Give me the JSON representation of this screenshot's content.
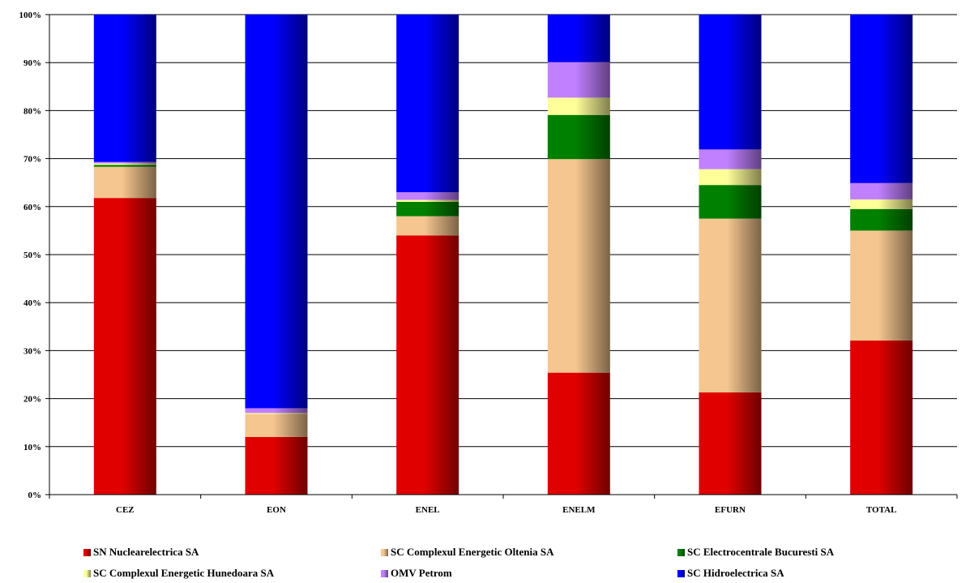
{
  "chart_data": {
    "type": "bar",
    "stacked": true,
    "percent": true,
    "categories": [
      "CEZ",
      "EON",
      "ENEL",
      "ENELM",
      "EFURN",
      "TOTAL"
    ],
    "ylim": [
      0,
      100
    ],
    "yticks": [
      "0%",
      "10%",
      "20%",
      "30%",
      "40%",
      "50%",
      "60%",
      "70%",
      "80%",
      "90%",
      "100%"
    ],
    "grid": true,
    "legend_position": "bottom",
    "series": [
      {
        "name": "SN Nuclearelectrica SA",
        "color": "#e00000",
        "values": [
          61.8,
          12.0,
          54.0,
          25.4,
          21.3,
          32.1
        ]
      },
      {
        "name": "SC Complexul Energetic Oltenia SA",
        "color": "#f5c690",
        "values": [
          6.5,
          4.8,
          4.0,
          44.5,
          36.2,
          22.9
        ]
      },
      {
        "name": "SC Electrocentrale Bucuresti SA",
        "color": "#008000",
        "values": [
          0.4,
          0.0,
          3.0,
          9.2,
          7.0,
          4.5
        ]
      },
      {
        "name": "SC Complexul Energetic Hunedoara SA",
        "color": "#ffff99",
        "values": [
          0.3,
          0.2,
          0.4,
          3.6,
          3.3,
          2.0
        ]
      },
      {
        "name": "OMV Petrom",
        "color": "#c080ff",
        "values": [
          0.3,
          1.0,
          1.6,
          7.4,
          4.1,
          3.4
        ]
      },
      {
        "name": "SC Hidroelectrica SA",
        "color": "#0000ff",
        "values": [
          30.7,
          82.0,
          37.0,
          9.9,
          28.1,
          35.1
        ]
      }
    ]
  }
}
